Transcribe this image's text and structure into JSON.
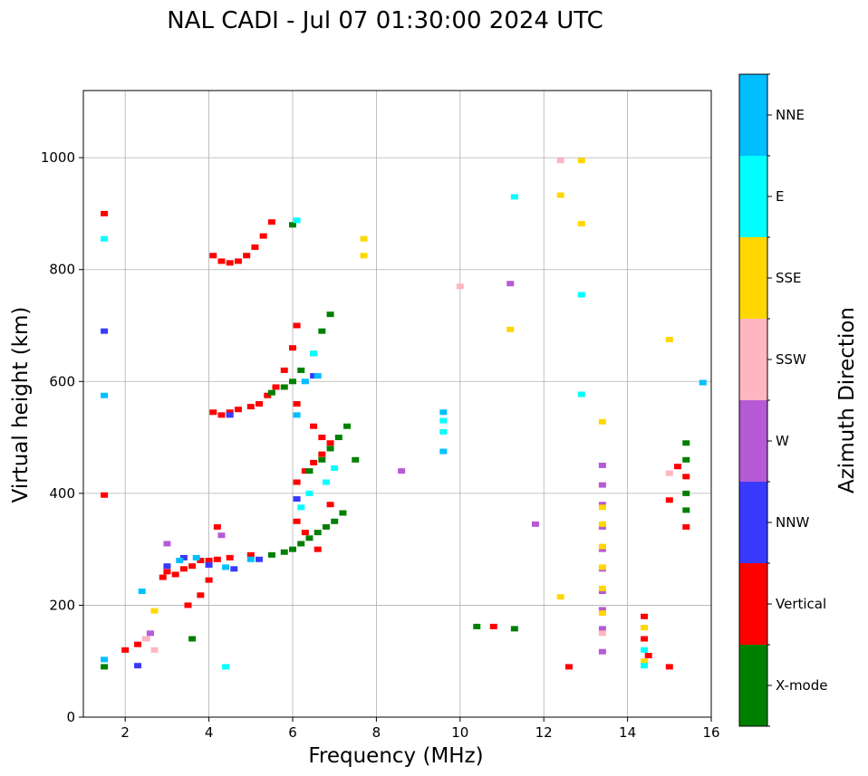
{
  "chart_data": {
    "type": "scatter",
    "title": "NAL CADI - Jul 07 01:30:00 2024 UTC",
    "xlabel": "Frequency (MHz)",
    "ylabel": "Virtual height (km)",
    "xlim": [
      1,
      16
    ],
    "ylim": [
      0,
      1120
    ],
    "xticks": [
      2,
      4,
      6,
      8,
      10,
      12,
      14,
      16
    ],
    "yticks": [
      0,
      200,
      400,
      600,
      800,
      1000
    ],
    "grid": true,
    "colorbar": {
      "label": "Azimuth Direction",
      "categories": [
        "X-mode",
        "Vertical",
        "NNW",
        "W",
        "SSW",
        "SSE",
        "E",
        "NNE"
      ],
      "colors": {
        "X-mode": "#008000",
        "Vertical": "#ff0000",
        "NNW": "#3a3aff",
        "W": "#b65ad6",
        "SSW": "#ffb6c1",
        "SSE": "#ffd700",
        "E": "#00ffff",
        "NNE": "#00bfff"
      }
    },
    "series": [
      {
        "name": "Vertical",
        "points": [
          [
            1.5,
            900
          ],
          [
            1.5,
            397
          ],
          [
            2.0,
            120
          ],
          [
            2.3,
            130
          ],
          [
            2.5,
            140
          ],
          [
            2.9,
            250
          ],
          [
            3.0,
            260
          ],
          [
            3.2,
            255
          ],
          [
            3.4,
            265
          ],
          [
            3.6,
            270
          ],
          [
            3.8,
            280
          ],
          [
            4.0,
            280
          ],
          [
            4.2,
            282
          ],
          [
            4.5,
            285
          ],
          [
            5.0,
            290
          ],
          [
            3.5,
            200
          ],
          [
            3.8,
            218
          ],
          [
            4.0,
            245
          ],
          [
            4.2,
            340
          ],
          [
            4.1,
            545
          ],
          [
            4.3,
            540
          ],
          [
            4.5,
            545
          ],
          [
            4.7,
            550
          ],
          [
            5.0,
            555
          ],
          [
            5.2,
            560
          ],
          [
            5.4,
            575
          ],
          [
            5.6,
            590
          ],
          [
            5.8,
            620
          ],
          [
            6.0,
            660
          ],
          [
            6.1,
            700
          ],
          [
            4.1,
            825
          ],
          [
            4.3,
            815
          ],
          [
            4.5,
            812
          ],
          [
            4.7,
            815
          ],
          [
            4.9,
            825
          ],
          [
            5.1,
            840
          ],
          [
            5.3,
            860
          ],
          [
            5.5,
            885
          ],
          [
            6.1,
            420
          ],
          [
            6.3,
            440
          ],
          [
            6.5,
            455
          ],
          [
            6.7,
            470
          ],
          [
            6.9,
            490
          ],
          [
            6.1,
            350
          ],
          [
            6.3,
            330
          ],
          [
            6.6,
            300
          ],
          [
            6.9,
            380
          ],
          [
            6.1,
            560
          ],
          [
            6.5,
            520
          ],
          [
            6.7,
            500
          ],
          [
            10.8,
            162
          ],
          [
            12.6,
            90
          ],
          [
            14.4,
            180
          ],
          [
            14.4,
            140
          ],
          [
            14.5,
            110
          ],
          [
            15.0,
            90
          ],
          [
            15.0,
            388
          ],
          [
            15.2,
            448
          ],
          [
            15.4,
            340
          ],
          [
            15.4,
            430
          ]
        ]
      },
      {
        "name": "X-mode",
        "points": [
          [
            1.5,
            90
          ],
          [
            3.6,
            140
          ],
          [
            5.5,
            290
          ],
          [
            5.8,
            295
          ],
          [
            6.0,
            300
          ],
          [
            6.2,
            310
          ],
          [
            6.4,
            320
          ],
          [
            6.6,
            330
          ],
          [
            6.8,
            340
          ],
          [
            7.0,
            350
          ],
          [
            7.2,
            365
          ],
          [
            5.5,
            580
          ],
          [
            5.8,
            590
          ],
          [
            6.0,
            600
          ],
          [
            6.2,
            620
          ],
          [
            6.5,
            650
          ],
          [
            6.7,
            690
          ],
          [
            6.9,
            720
          ],
          [
            6.0,
            880
          ],
          [
            6.4,
            440
          ],
          [
            6.7,
            460
          ],
          [
            6.9,
            480
          ],
          [
            7.1,
            500
          ],
          [
            7.3,
            520
          ],
          [
            7.5,
            460
          ],
          [
            10.4,
            162
          ],
          [
            11.3,
            158
          ],
          [
            15.4,
            370
          ],
          [
            15.4,
            400
          ],
          [
            15.4,
            460
          ],
          [
            15.4,
            490
          ]
        ]
      },
      {
        "name": "NNW",
        "points": [
          [
            1.5,
            690
          ],
          [
            2.3,
            92
          ],
          [
            3.0,
            270
          ],
          [
            3.4,
            285
          ],
          [
            4.0,
            272
          ],
          [
            4.6,
            265
          ],
          [
            5.2,
            282
          ],
          [
            6.1,
            390
          ],
          [
            6.5,
            610
          ],
          [
            4.5,
            540
          ]
        ]
      },
      {
        "name": "W",
        "points": [
          [
            2.6,
            150
          ],
          [
            3.0,
            310
          ],
          [
            4.3,
            325
          ],
          [
            8.6,
            440
          ],
          [
            11.2,
            775
          ],
          [
            11.8,
            345
          ],
          [
            13.4,
            450
          ],
          [
            13.4,
            415
          ],
          [
            13.4,
            380
          ],
          [
            13.4,
            340
          ],
          [
            13.4,
            300
          ],
          [
            13.4,
            265
          ],
          [
            13.4,
            225
          ],
          [
            13.4,
            192
          ],
          [
            13.4,
            158
          ],
          [
            13.4,
            117
          ]
        ]
      },
      {
        "name": "SSW",
        "points": [
          [
            2.5,
            140
          ],
          [
            2.7,
            120
          ],
          [
            10.0,
            770
          ],
          [
            12.4,
            995
          ],
          [
            13.4,
            150
          ],
          [
            15.0,
            436
          ]
        ]
      },
      {
        "name": "SSE",
        "points": [
          [
            2.7,
            190
          ],
          [
            7.7,
            855
          ],
          [
            7.7,
            825
          ],
          [
            11.2,
            693
          ],
          [
            12.4,
            933
          ],
          [
            12.4,
            215
          ],
          [
            12.9,
            995
          ],
          [
            12.9,
            882
          ],
          [
            13.4,
            528
          ],
          [
            13.4,
            375
          ],
          [
            13.4,
            345
          ],
          [
            13.4,
            305
          ],
          [
            13.4,
            268
          ],
          [
            13.4,
            230
          ],
          [
            13.4,
            186
          ],
          [
            14.4,
            160
          ],
          [
            14.4,
            100
          ],
          [
            15.0,
            675
          ]
        ]
      },
      {
        "name": "E",
        "points": [
          [
            1.5,
            855
          ],
          [
            4.4,
            90
          ],
          [
            6.1,
            888
          ],
          [
            6.5,
            650
          ],
          [
            6.4,
            400
          ],
          [
            6.2,
            375
          ],
          [
            6.8,
            420
          ],
          [
            7.0,
            445
          ],
          [
            9.6,
            530
          ],
          [
            9.6,
            510
          ],
          [
            11.3,
            930
          ],
          [
            12.9,
            755
          ],
          [
            12.9,
            577
          ],
          [
            14.4,
            120
          ],
          [
            14.4,
            92
          ]
        ]
      },
      {
        "name": "NNE",
        "points": [
          [
            1.5,
            575
          ],
          [
            1.5,
            103
          ],
          [
            2.4,
            225
          ],
          [
            3.3,
            280
          ],
          [
            3.7,
            285
          ],
          [
            4.4,
            268
          ],
          [
            5.0,
            282
          ],
          [
            6.1,
            540
          ],
          [
            6.3,
            600
          ],
          [
            6.6,
            610
          ],
          [
            9.6,
            545
          ],
          [
            9.6,
            475
          ],
          [
            15.8,
            598
          ]
        ]
      }
    ]
  }
}
